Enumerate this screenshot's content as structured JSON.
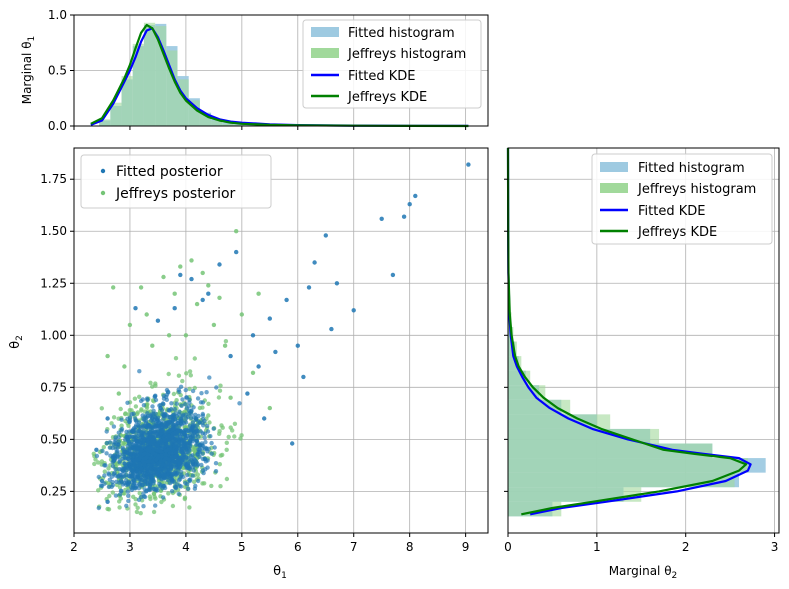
{
  "colors": {
    "fitted_hist": "#9ecae1",
    "jeffreys_hist": "#a1d99b",
    "overlap_hist": "#8fbfa0",
    "fitted_kde": "#0000ff",
    "jeffreys_kde": "#008000",
    "fitted_scatter": "#1f77b4",
    "jeffreys_scatter": "#74c476",
    "grid": "#b0b0b0"
  },
  "chart_data": [
    {
      "id": "top",
      "type": "area",
      "ylabel": "Marginal θ1",
      "xlim": [
        2.0,
        9.4
      ],
      "ylim": [
        0,
        1.0
      ],
      "y_ticks": [
        "0.0",
        "0.5",
        "1.0"
      ],
      "y_tick_values": [
        0.0,
        0.5,
        1.0
      ],
      "grid": true,
      "legend_position": "top-right",
      "legend": [
        "Fitted histogram",
        "Jeffreys histogram",
        "Fitted KDE",
        "Jeffreys KDE"
      ],
      "hist_bins": [
        2.45,
        2.65,
        2.85,
        3.05,
        3.25,
        3.45,
        3.65,
        3.85,
        4.05,
        4.25,
        4.45,
        4.65,
        4.85,
        5.05,
        5.25,
        5.45
      ],
      "fitted_hist": [
        0.05,
        0.18,
        0.42,
        0.72,
        0.91,
        0.92,
        0.72,
        0.45,
        0.25,
        0.12,
        0.06,
        0.03,
        0.015,
        0.008,
        0.004
      ],
      "jeffreys_hist": [
        0.06,
        0.21,
        0.45,
        0.74,
        0.93,
        0.9,
        0.68,
        0.42,
        0.23,
        0.11,
        0.05,
        0.02,
        0.01,
        0.006,
        0.003
      ],
      "series": [
        {
          "name": "Fitted KDE",
          "x": [
            2.3,
            2.5,
            2.7,
            2.9,
            3.0,
            3.1,
            3.2,
            3.3,
            3.4,
            3.5,
            3.6,
            3.7,
            3.8,
            3.9,
            4.0,
            4.2,
            4.4,
            4.6,
            4.8,
            5.0,
            5.5,
            6.0,
            7.0,
            8.0,
            9.05
          ],
          "y": [
            0.01,
            0.05,
            0.2,
            0.4,
            0.5,
            0.62,
            0.76,
            0.86,
            0.88,
            0.8,
            0.68,
            0.55,
            0.42,
            0.32,
            0.25,
            0.16,
            0.1,
            0.06,
            0.04,
            0.03,
            0.015,
            0.008,
            0.004,
            0.002,
            0.001
          ]
        },
        {
          "name": "Jeffreys KDE",
          "x": [
            2.3,
            2.5,
            2.7,
            2.9,
            3.0,
            3.1,
            3.2,
            3.3,
            3.4,
            3.5,
            3.6,
            3.7,
            3.8,
            3.9,
            4.0,
            4.2,
            4.4,
            4.6,
            4.8,
            5.0,
            5.5,
            6.0,
            7.0,
            8.0,
            9.05
          ],
          "y": [
            0.02,
            0.07,
            0.23,
            0.43,
            0.55,
            0.7,
            0.84,
            0.91,
            0.88,
            0.78,
            0.65,
            0.52,
            0.4,
            0.3,
            0.23,
            0.14,
            0.08,
            0.05,
            0.03,
            0.02,
            0.01,
            0.006,
            0.003,
            0.001,
            0.0
          ]
        }
      ]
    },
    {
      "id": "main",
      "type": "scatter",
      "xlabel": "θ1",
      "ylabel": "θ2",
      "xlim": [
        2.0,
        9.4
      ],
      "ylim": [
        0.05,
        1.9
      ],
      "x_ticks": [
        "2",
        "3",
        "4",
        "5",
        "6",
        "7",
        "8",
        "9"
      ],
      "x_tick_values": [
        2,
        3,
        4,
        5,
        6,
        7,
        8,
        9
      ],
      "y_ticks": [
        "0.25",
        "0.50",
        "0.75",
        "1.00",
        "1.25",
        "1.50",
        "1.75"
      ],
      "y_tick_values": [
        0.25,
        0.5,
        0.75,
        1.0,
        1.25,
        1.5,
        1.75
      ],
      "grid": true,
      "legend_position": "top-left",
      "legend": [
        "Fitted posterior",
        "Jeffreys posterior"
      ],
      "bulk_center": [
        3.45,
        0.4
      ],
      "bulk_note_sd": [
        0.38,
        0.12
      ],
      "series": [
        {
          "name": "Jeffreys posterior",
          "points": [
            [
              2.7,
              1.23
            ],
            [
              3.6,
              1.28
            ],
            [
              3.9,
              1.33
            ],
            [
              4.1,
              1.36
            ],
            [
              4.3,
              1.3
            ],
            [
              4.6,
              1.18
            ],
            [
              4.9,
              1.5
            ],
            [
              4.2,
              1.15
            ],
            [
              3.3,
              1.1
            ],
            [
              3.0,
              1.05
            ],
            [
              3.8,
              1.2
            ],
            [
              4.5,
              1.05
            ],
            [
              5.0,
              1.1
            ],
            [
              5.3,
              1.2
            ],
            [
              4.0,
              1.0
            ],
            [
              3.4,
              0.95
            ],
            [
              2.6,
              0.9
            ],
            [
              2.9,
              0.85
            ],
            [
              4.7,
              0.95
            ],
            [
              5.2,
              0.82
            ],
            [
              3.2,
              1.23
            ],
            [
              4.4,
              1.24
            ],
            [
              3.7,
              1.0
            ],
            [
              2.8,
              0.72
            ],
            [
              5.5,
              0.65
            ],
            [
              4.8,
              0.7
            ]
          ]
        },
        {
          "name": "Fitted posterior",
          "points": [
            [
              9.05,
              1.82
            ],
            [
              8.1,
              1.67
            ],
            [
              8.0,
              1.63
            ],
            [
              7.5,
              1.56
            ],
            [
              7.9,
              1.57
            ],
            [
              7.7,
              1.29
            ],
            [
              6.5,
              1.48
            ],
            [
              6.2,
              1.23
            ],
            [
              6.7,
              1.25
            ],
            [
              7.0,
              1.12
            ],
            [
              6.3,
              1.35
            ],
            [
              5.8,
              1.17
            ],
            [
              6.1,
              0.8
            ],
            [
              5.6,
              0.92
            ],
            [
              6.0,
              0.95
            ],
            [
              5.9,
              0.48
            ],
            [
              5.4,
              0.6
            ],
            [
              5.1,
              0.72
            ],
            [
              4.9,
              1.4
            ],
            [
              4.6,
              1.34
            ],
            [
              4.4,
              1.2
            ],
            [
              3.9,
              1.29
            ],
            [
              4.3,
              1.17
            ],
            [
              5.5,
              1.08
            ],
            [
              5.2,
              1.0
            ],
            [
              4.8,
              0.9
            ],
            [
              3.1,
              1.13
            ],
            [
              3.5,
              1.07
            ],
            [
              2.6,
              0.6
            ],
            [
              2.4,
              0.45
            ],
            [
              2.5,
              0.3
            ],
            [
              2.6,
              0.2
            ],
            [
              4.1,
              1.27
            ],
            [
              3.8,
              1.13
            ],
            [
              6.6,
              1.03
            ],
            [
              5.3,
              0.85
            ]
          ]
        }
      ]
    },
    {
      "id": "right",
      "type": "area",
      "xlabel": "Marginal θ2",
      "xlim": [
        0,
        3.05
      ],
      "ylim": [
        0.05,
        1.9
      ],
      "x_ticks": [
        "0",
        "1",
        "2",
        "3"
      ],
      "x_tick_values": [
        0,
        1,
        2,
        3
      ],
      "grid": true,
      "legend_position": "top-right",
      "legend": [
        "Fitted histogram",
        "Jeffreys histogram",
        "Fitted KDE",
        "Jeffreys KDE"
      ],
      "hist_bins": [
        0.13,
        0.2,
        0.27,
        0.34,
        0.41,
        0.48,
        0.55,
        0.62,
        0.69,
        0.76,
        0.83,
        0.9,
        0.97,
        1.04,
        1.11
      ],
      "fitted_hist": [
        0.5,
        1.3,
        2.6,
        2.9,
        2.3,
        1.6,
        1.0,
        0.6,
        0.35,
        0.2,
        0.12,
        0.08,
        0.05,
        0.03
      ],
      "jeffreys_hist": [
        0.6,
        1.5,
        2.55,
        2.7,
        2.3,
        1.7,
        1.15,
        0.7,
        0.42,
        0.25,
        0.15,
        0.1,
        0.06,
        0.04
      ],
      "series": [
        {
          "name": "Fitted KDE",
          "y": [
            0.14,
            0.17,
            0.2,
            0.25,
            0.3,
            0.35,
            0.38,
            0.41,
            0.43,
            0.45,
            0.5,
            0.55,
            0.6,
            0.65,
            0.7,
            0.75,
            0.8,
            0.85,
            0.9,
            1.0,
            1.1,
            1.2,
            1.3,
            1.5,
            1.9
          ],
          "x": [
            0.25,
            0.6,
            1.1,
            1.9,
            2.45,
            2.7,
            2.73,
            2.6,
            2.2,
            1.85,
            1.35,
            0.95,
            0.68,
            0.47,
            0.32,
            0.23,
            0.16,
            0.1,
            0.06,
            0.03,
            0.015,
            0.01,
            0.005,
            0.002,
            0.0
          ]
        },
        {
          "name": "Jeffreys KDE",
          "y": [
            0.14,
            0.17,
            0.2,
            0.25,
            0.3,
            0.35,
            0.38,
            0.41,
            0.43,
            0.45,
            0.5,
            0.55,
            0.6,
            0.65,
            0.7,
            0.75,
            0.8,
            0.85,
            0.9,
            1.0,
            1.1,
            1.2,
            1.3,
            1.5,
            1.9
          ],
          "x": [
            0.15,
            0.5,
            0.95,
            1.7,
            2.3,
            2.6,
            2.68,
            2.5,
            2.1,
            1.75,
            1.4,
            1.05,
            0.78,
            0.56,
            0.4,
            0.28,
            0.19,
            0.12,
            0.08,
            0.04,
            0.02,
            0.012,
            0.006,
            0.002,
            0.0
          ]
        }
      ]
    }
  ]
}
